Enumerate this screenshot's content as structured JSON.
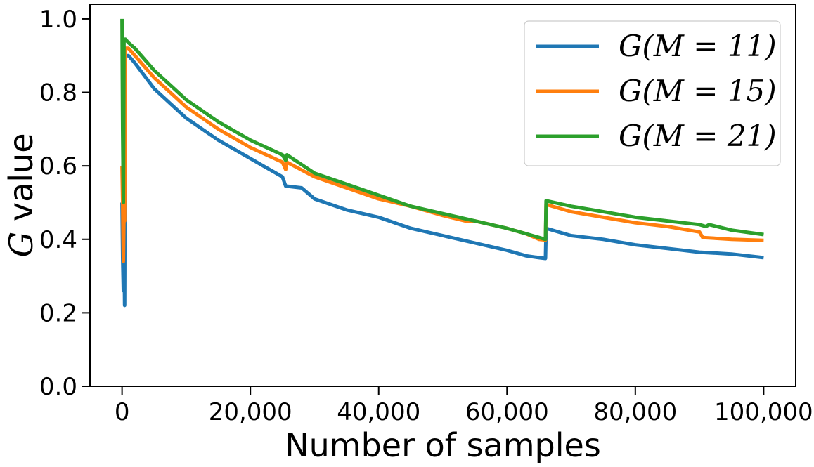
{
  "chart_data": {
    "type": "line",
    "xlabel": "Number of samples",
    "ylabel": "G",
    "ylabel_suffix": " value",
    "xlim": [
      -5000,
      105000
    ],
    "ylim": [
      0.0,
      1.04
    ],
    "xticks": [
      0,
      20000,
      40000,
      60000,
      80000,
      100000
    ],
    "xtick_labels": [
      "0",
      "20,000",
      "40,000",
      "60,000",
      "80,000",
      "100,000"
    ],
    "yticks": [
      0.0,
      0.2,
      0.4,
      0.6,
      0.8,
      1.0
    ],
    "ytick_labels": [
      "0.0",
      "0.2",
      "0.4",
      "0.6",
      "0.8",
      "1.0"
    ],
    "grid": false,
    "legend_position": "top-right",
    "series": [
      {
        "name": "G(M = 11)",
        "color": "#1f77b4",
        "points": [
          [
            0,
            0.5
          ],
          [
            100,
            0.35
          ],
          [
            200,
            0.26
          ],
          [
            300,
            0.42
          ],
          [
            400,
            0.22
          ],
          [
            500,
            0.9
          ],
          [
            1000,
            0.9
          ],
          [
            2000,
            0.88
          ],
          [
            5000,
            0.81
          ],
          [
            10000,
            0.73
          ],
          [
            15000,
            0.67
          ],
          [
            20000,
            0.62
          ],
          [
            25000,
            0.57
          ],
          [
            25500,
            0.545
          ],
          [
            28000,
            0.54
          ],
          [
            30000,
            0.51
          ],
          [
            35000,
            0.48
          ],
          [
            40000,
            0.46
          ],
          [
            45000,
            0.43
          ],
          [
            50000,
            0.41
          ],
          [
            55000,
            0.39
          ],
          [
            60000,
            0.37
          ],
          [
            63000,
            0.355
          ],
          [
            65000,
            0.35
          ],
          [
            66000,
            0.348
          ],
          [
            66100,
            0.43
          ],
          [
            70000,
            0.41
          ],
          [
            75000,
            0.4
          ],
          [
            80000,
            0.385
          ],
          [
            85000,
            0.375
          ],
          [
            90000,
            0.365
          ],
          [
            95000,
            0.36
          ],
          [
            100000,
            0.35
          ]
        ]
      },
      {
        "name": "G(M = 15)",
        "color": "#ff7f0e",
        "points": [
          [
            0,
            0.6
          ],
          [
            100,
            0.5
          ],
          [
            200,
            0.34
          ],
          [
            300,
            0.48
          ],
          [
            400,
            0.45
          ],
          [
            500,
            0.92
          ],
          [
            1000,
            0.92
          ],
          [
            2000,
            0.9
          ],
          [
            5000,
            0.84
          ],
          [
            10000,
            0.76
          ],
          [
            15000,
            0.7
          ],
          [
            20000,
            0.65
          ],
          [
            25000,
            0.61
          ],
          [
            25500,
            0.59
          ],
          [
            25700,
            0.61
          ],
          [
            30000,
            0.57
          ],
          [
            35000,
            0.54
          ],
          [
            40000,
            0.51
          ],
          [
            45000,
            0.49
          ],
          [
            50000,
            0.465
          ],
          [
            53500,
            0.45
          ],
          [
            55000,
            0.45
          ],
          [
            60000,
            0.43
          ],
          [
            63000,
            0.415
          ],
          [
            65000,
            0.4
          ],
          [
            66000,
            0.398
          ],
          [
            66100,
            0.495
          ],
          [
            70000,
            0.475
          ],
          [
            75000,
            0.46
          ],
          [
            80000,
            0.445
          ],
          [
            85000,
            0.435
          ],
          [
            90000,
            0.42
          ],
          [
            90500,
            0.405
          ],
          [
            95000,
            0.4
          ],
          [
            100000,
            0.397
          ]
        ]
      },
      {
        "name": "G(M = 21)",
        "color": "#2ca02c",
        "points": [
          [
            0,
            1.0
          ],
          [
            100,
            0.7
          ],
          [
            200,
            0.5
          ],
          [
            300,
            0.94
          ],
          [
            500,
            0.945
          ],
          [
            1000,
            0.935
          ],
          [
            2000,
            0.92
          ],
          [
            5000,
            0.86
          ],
          [
            10000,
            0.78
          ],
          [
            15000,
            0.72
          ],
          [
            20000,
            0.67
          ],
          [
            25000,
            0.63
          ],
          [
            25500,
            0.615
          ],
          [
            25700,
            0.63
          ],
          [
            30000,
            0.58
          ],
          [
            35000,
            0.55
          ],
          [
            40000,
            0.52
          ],
          [
            45000,
            0.49
          ],
          [
            50000,
            0.47
          ],
          [
            55000,
            0.45
          ],
          [
            60000,
            0.43
          ],
          [
            63000,
            0.415
          ],
          [
            65000,
            0.405
          ],
          [
            66000,
            0.4
          ],
          [
            66100,
            0.505
          ],
          [
            70000,
            0.49
          ],
          [
            75000,
            0.475
          ],
          [
            80000,
            0.46
          ],
          [
            85000,
            0.45
          ],
          [
            90000,
            0.44
          ],
          [
            91000,
            0.435
          ],
          [
            91500,
            0.44
          ],
          [
            95000,
            0.425
          ],
          [
            100000,
            0.413
          ]
        ]
      }
    ]
  }
}
